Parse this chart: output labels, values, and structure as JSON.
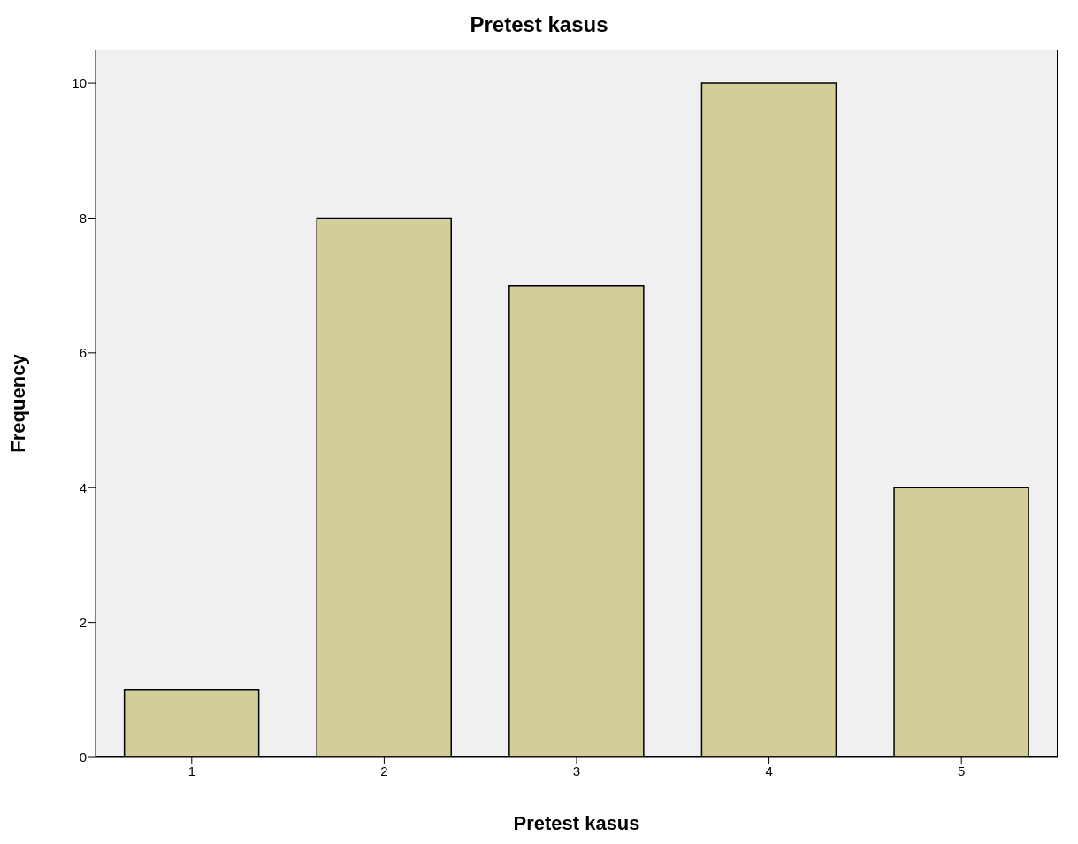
{
  "chart_data": {
    "type": "bar",
    "title": "Pretest kasus",
    "xlabel": "Pretest kasus",
    "ylabel": "Frequency",
    "categories": [
      "1",
      "2",
      "3",
      "4",
      "5"
    ],
    "values": [
      1,
      8,
      7,
      10,
      4
    ],
    "color": "#d3ce97",
    "ylim": [
      0,
      10.5
    ],
    "yticks": [
      0,
      2,
      4,
      6,
      8,
      10
    ]
  }
}
